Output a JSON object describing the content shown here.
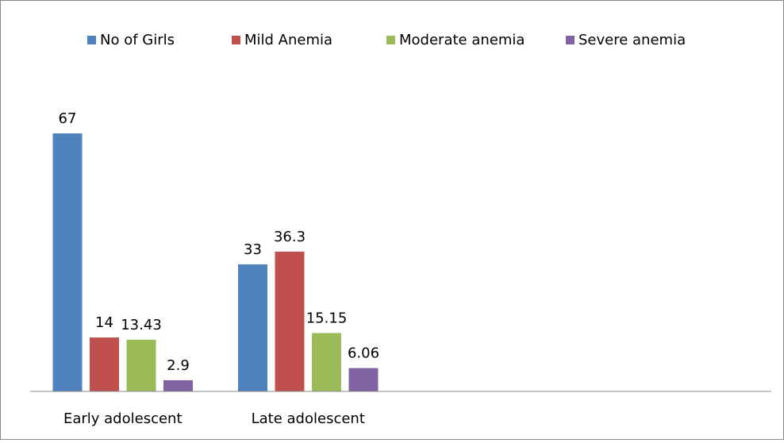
{
  "chart_data": {
    "type": "bar",
    "categories": [
      "Early adolescent",
      "Late adolescent",
      null,
      null
    ],
    "series": [
      {
        "name": "No of Girls",
        "color": "#4f81bd",
        "values": [
          67,
          33,
          null,
          null
        ]
      },
      {
        "name": "Mild Anemia",
        "color": "#c0504d",
        "values": [
          14,
          36.3,
          null,
          null
        ]
      },
      {
        "name": "Moderate anemia",
        "color": "#9bbb59",
        "values": [
          13.43,
          15.15,
          null,
          null
        ]
      },
      {
        "name": "Severe anemia",
        "color": "#8064a2",
        "values": [
          2.9,
          6.06,
          null,
          null
        ]
      }
    ],
    "ylim": [
      0,
      80
    ],
    "legend": "top"
  }
}
